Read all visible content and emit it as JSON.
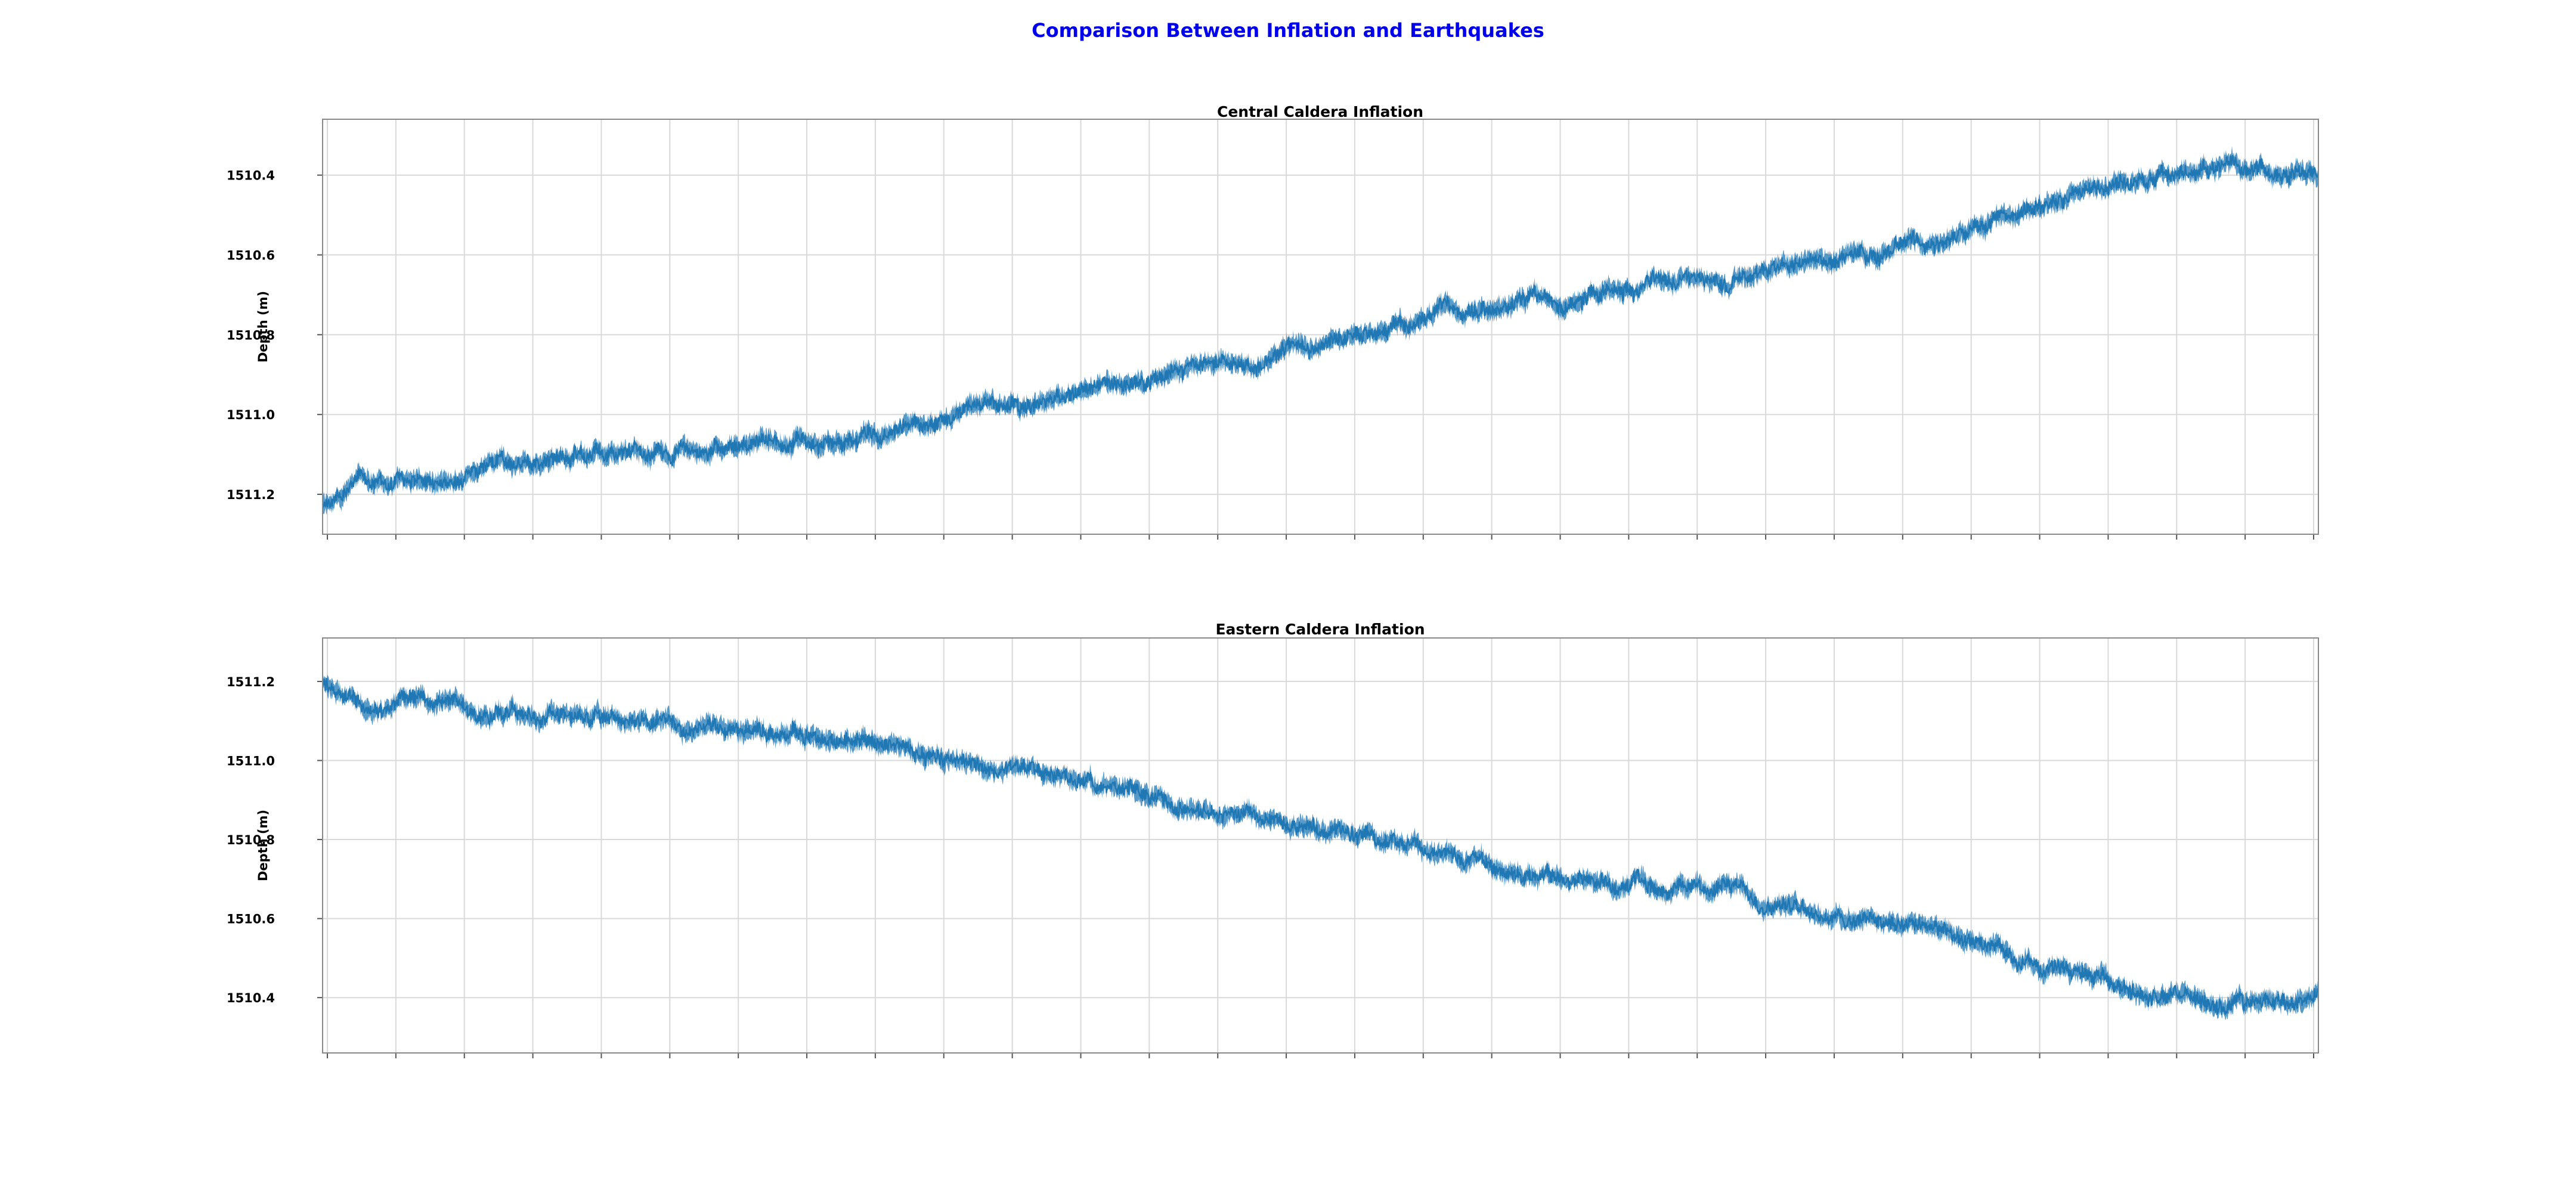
{
  "figure": {
    "title": "Comparison Between Inflation and Earthquakes",
    "title_color": "#0000ee",
    "line_color": "#1f77b4"
  },
  "chart_data": [
    {
      "type": "line",
      "title": "Central Caldera Inflation",
      "xlabel": "",
      "ylabel": "Depth (m)",
      "y_inverted": true,
      "ylim": [
        1511.3,
        1510.26
      ],
      "yticks": [
        1510.4,
        1510.6,
        1510.8,
        1511.0,
        1511.2
      ],
      "ytick_labels": [
        "1510.4",
        "1510.6",
        "1510.8",
        "1511.0",
        "1511.2"
      ],
      "xticks": 30,
      "grid": true,
      "series": [
        {
          "x": [
            0.0,
            0.02,
            0.05,
            0.1,
            0.15,
            0.2,
            0.25,
            0.3,
            0.35,
            0.4,
            0.45,
            0.5,
            0.55,
            0.6,
            0.65,
            0.7,
            0.75,
            0.8,
            0.85,
            0.9,
            0.95,
            1.0
          ],
          "values": [
            1511.22,
            1511.15,
            1511.17,
            1511.12,
            1511.1,
            1511.08,
            1511.06,
            1511.02,
            1510.97,
            1510.92,
            1510.88,
            1510.83,
            1510.77,
            1510.72,
            1510.69,
            1510.68,
            1510.62,
            1510.57,
            1510.5,
            1510.43,
            1510.38,
            1510.41
          ]
        }
      ]
    },
    {
      "type": "line",
      "title": "Eastern Caldera Inflation",
      "xlabel": "",
      "ylabel": "Depth (m)",
      "y_inverted": false,
      "ylim": [
        1510.26,
        1511.31
      ],
      "yticks": [
        1510.4,
        1510.6,
        1510.8,
        1511.0,
        1511.2
      ],
      "ytick_labels": [
        "1510.4",
        "1510.6",
        "1510.8",
        "1511.0",
        "1511.2"
      ],
      "xticks": 30,
      "grid": true,
      "series": [
        {
          "x": [
            0.0,
            0.02,
            0.05,
            0.1,
            0.15,
            0.2,
            0.25,
            0.3,
            0.35,
            0.4,
            0.45,
            0.5,
            0.55,
            0.6,
            0.65,
            0.7,
            0.75,
            0.8,
            0.85,
            0.9,
            0.95,
            1.0
          ],
          "values": [
            1511.2,
            1511.15,
            1511.16,
            1511.12,
            1511.1,
            1511.08,
            1511.06,
            1511.02,
            1510.97,
            1510.92,
            1510.88,
            1510.83,
            1510.77,
            1510.72,
            1510.69,
            1510.68,
            1510.62,
            1510.57,
            1510.5,
            1510.43,
            1510.38,
            1510.41
          ]
        }
      ]
    }
  ]
}
